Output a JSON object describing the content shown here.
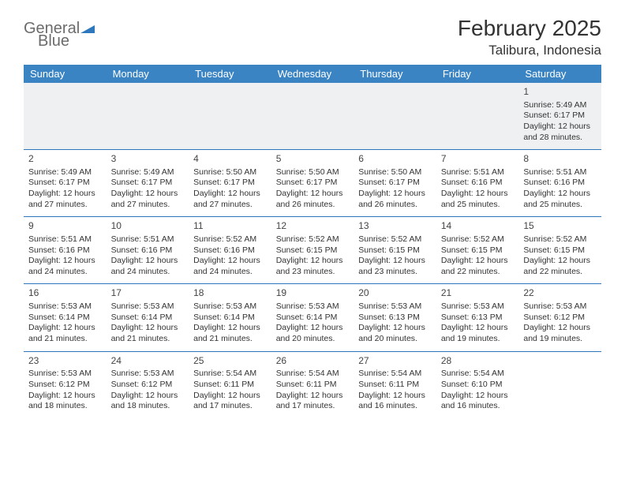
{
  "logo": {
    "line1": "General",
    "line2": "Blue"
  },
  "header": {
    "month_title": "February 2025",
    "location": "Talibura, Indonesia"
  },
  "colors": {
    "header_bg": "#3b84c4",
    "header_text": "#ffffff",
    "row_border": "#2d77bc",
    "first_row_bg": "#eef0f1",
    "logo_gray": "#6b6b6b",
    "logo_blue": "#2d77bc"
  },
  "day_headers": [
    "Sunday",
    "Monday",
    "Tuesday",
    "Wednesday",
    "Thursday",
    "Friday",
    "Saturday"
  ],
  "weeks": [
    [
      null,
      null,
      null,
      null,
      null,
      null,
      {
        "n": "1",
        "sr": "5:49 AM",
        "ss": "6:17 PM",
        "dl": "12 hours and 28 minutes."
      }
    ],
    [
      {
        "n": "2",
        "sr": "5:49 AM",
        "ss": "6:17 PM",
        "dl": "12 hours and 27 minutes."
      },
      {
        "n": "3",
        "sr": "5:49 AM",
        "ss": "6:17 PM",
        "dl": "12 hours and 27 minutes."
      },
      {
        "n": "4",
        "sr": "5:50 AM",
        "ss": "6:17 PM",
        "dl": "12 hours and 27 minutes."
      },
      {
        "n": "5",
        "sr": "5:50 AM",
        "ss": "6:17 PM",
        "dl": "12 hours and 26 minutes."
      },
      {
        "n": "6",
        "sr": "5:50 AM",
        "ss": "6:17 PM",
        "dl": "12 hours and 26 minutes."
      },
      {
        "n": "7",
        "sr": "5:51 AM",
        "ss": "6:16 PM",
        "dl": "12 hours and 25 minutes."
      },
      {
        "n": "8",
        "sr": "5:51 AM",
        "ss": "6:16 PM",
        "dl": "12 hours and 25 minutes."
      }
    ],
    [
      {
        "n": "9",
        "sr": "5:51 AM",
        "ss": "6:16 PM",
        "dl": "12 hours and 24 minutes."
      },
      {
        "n": "10",
        "sr": "5:51 AM",
        "ss": "6:16 PM",
        "dl": "12 hours and 24 minutes."
      },
      {
        "n": "11",
        "sr": "5:52 AM",
        "ss": "6:16 PM",
        "dl": "12 hours and 24 minutes."
      },
      {
        "n": "12",
        "sr": "5:52 AM",
        "ss": "6:15 PM",
        "dl": "12 hours and 23 minutes."
      },
      {
        "n": "13",
        "sr": "5:52 AM",
        "ss": "6:15 PM",
        "dl": "12 hours and 23 minutes."
      },
      {
        "n": "14",
        "sr": "5:52 AM",
        "ss": "6:15 PM",
        "dl": "12 hours and 22 minutes."
      },
      {
        "n": "15",
        "sr": "5:52 AM",
        "ss": "6:15 PM",
        "dl": "12 hours and 22 minutes."
      }
    ],
    [
      {
        "n": "16",
        "sr": "5:53 AM",
        "ss": "6:14 PM",
        "dl": "12 hours and 21 minutes."
      },
      {
        "n": "17",
        "sr": "5:53 AM",
        "ss": "6:14 PM",
        "dl": "12 hours and 21 minutes."
      },
      {
        "n": "18",
        "sr": "5:53 AM",
        "ss": "6:14 PM",
        "dl": "12 hours and 21 minutes."
      },
      {
        "n": "19",
        "sr": "5:53 AM",
        "ss": "6:14 PM",
        "dl": "12 hours and 20 minutes."
      },
      {
        "n": "20",
        "sr": "5:53 AM",
        "ss": "6:13 PM",
        "dl": "12 hours and 20 minutes."
      },
      {
        "n": "21",
        "sr": "5:53 AM",
        "ss": "6:13 PM",
        "dl": "12 hours and 19 minutes."
      },
      {
        "n": "22",
        "sr": "5:53 AM",
        "ss": "6:12 PM",
        "dl": "12 hours and 19 minutes."
      }
    ],
    [
      {
        "n": "23",
        "sr": "5:53 AM",
        "ss": "6:12 PM",
        "dl": "12 hours and 18 minutes."
      },
      {
        "n": "24",
        "sr": "5:53 AM",
        "ss": "6:12 PM",
        "dl": "12 hours and 18 minutes."
      },
      {
        "n": "25",
        "sr": "5:54 AM",
        "ss": "6:11 PM",
        "dl": "12 hours and 17 minutes."
      },
      {
        "n": "26",
        "sr": "5:54 AM",
        "ss": "6:11 PM",
        "dl": "12 hours and 17 minutes."
      },
      {
        "n": "27",
        "sr": "5:54 AM",
        "ss": "6:11 PM",
        "dl": "12 hours and 16 minutes."
      },
      {
        "n": "28",
        "sr": "5:54 AM",
        "ss": "6:10 PM",
        "dl": "12 hours and 16 minutes."
      },
      null
    ]
  ],
  "labels": {
    "sunrise": "Sunrise: ",
    "sunset": "Sunset: ",
    "daylight": "Daylight: "
  }
}
